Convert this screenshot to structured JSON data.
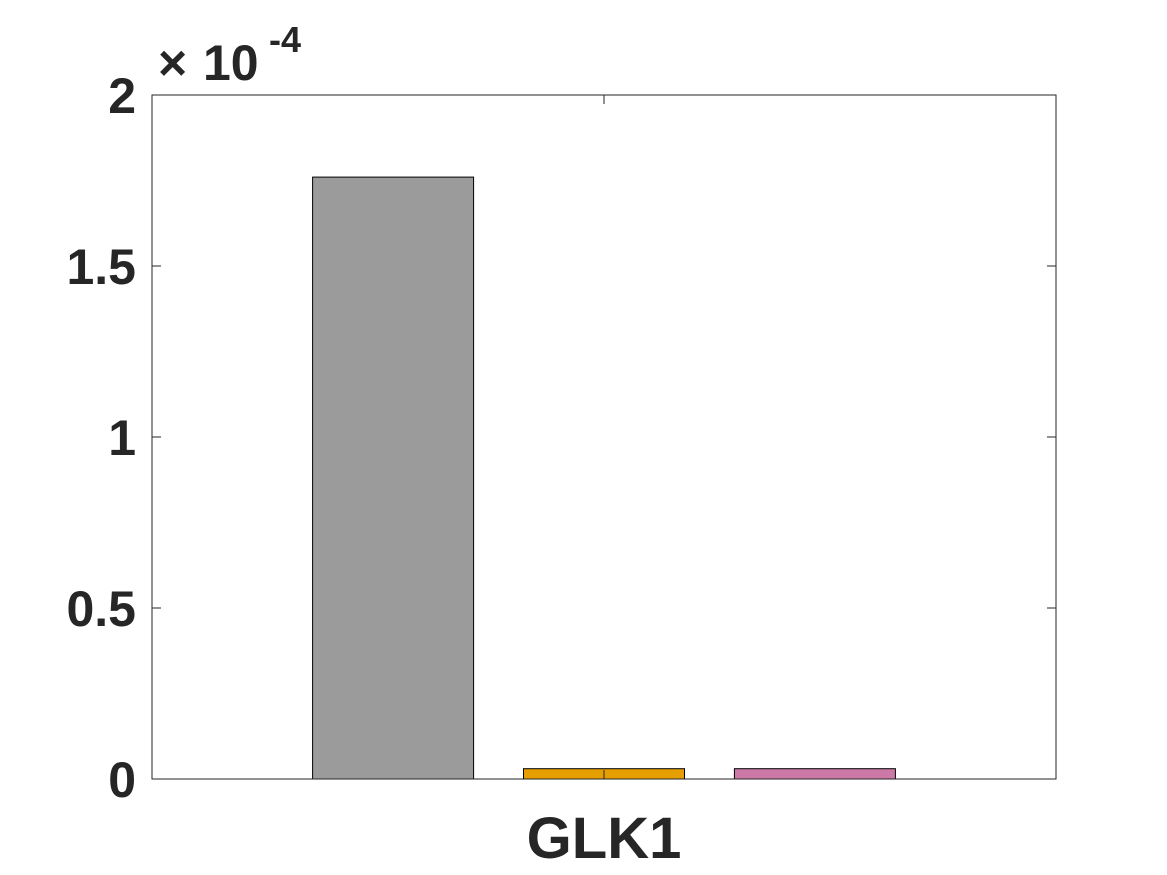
{
  "chart_data": {
    "type": "bar",
    "categories": [
      "GLK1"
    ],
    "series": [
      {
        "values": [
          0.000176
        ],
        "color": "#9b9b9b"
      },
      {
        "values": [
          3e-06
        ],
        "color": "#e69f00"
      },
      {
        "values": [
          3e-06
        ],
        "color": "#cc79a7"
      }
    ],
    "ylim": [
      0,
      0.0002
    ],
    "yticks": [
      0,
      5e-05,
      0.0001,
      0.00015,
      0.0002
    ],
    "ytick_labels": [
      "0",
      "0.5",
      "1",
      "1.5",
      "2"
    ],
    "y_exponent_label": {
      "base": "10",
      "exponent": "-4"
    },
    "xlabel": "",
    "ylabel": "",
    "title": "",
    "grid": false,
    "legend": false
  }
}
